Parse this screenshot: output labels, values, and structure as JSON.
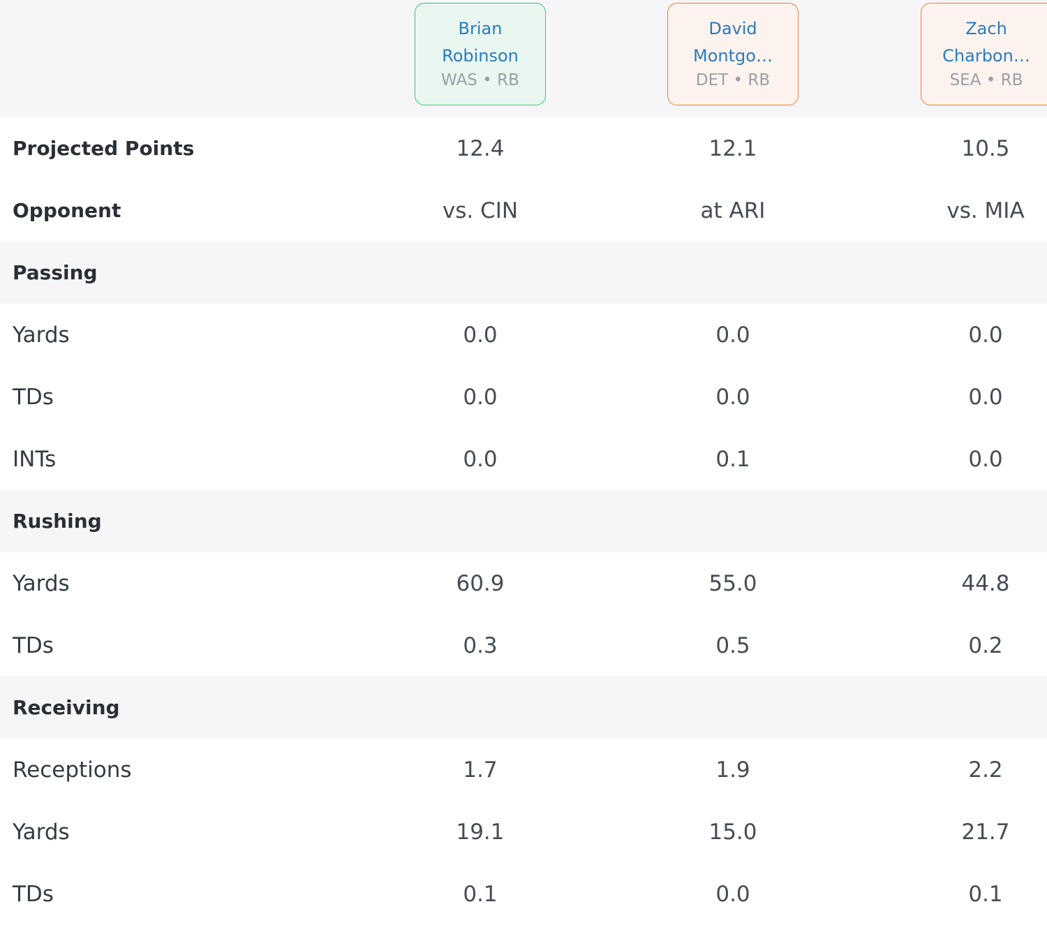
{
  "players": [
    {
      "name": "Brian\nRobinson",
      "meta": "WAS • RB",
      "border_color": "#36c277",
      "bg_color": "#e9f7f0"
    },
    {
      "name": "David\nMontgo…",
      "meta": "DET • RB",
      "border_color": "#ef7a3a",
      "bg_color": "#fdf3ee"
    },
    {
      "name": "Zach\nCharbon…",
      "meta": "SEA • RB",
      "border_color": "#ef7a3a",
      "bg_color": "#fdf3ee"
    }
  ],
  "rows": {
    "projected_points": {
      "label": "Projected Points",
      "values": [
        "12.4",
        "12.1",
        "10.5"
      ]
    },
    "opponent": {
      "label": "Opponent",
      "values": [
        "vs. CIN",
        "at ARI",
        "vs. MIA"
      ]
    },
    "passing_header": {
      "label": "Passing"
    },
    "passing_yards": {
      "label": "Yards",
      "values": [
        "0.0",
        "0.0",
        "0.0"
      ]
    },
    "passing_tds": {
      "label": "TDs",
      "values": [
        "0.0",
        "0.0",
        "0.0"
      ]
    },
    "passing_ints": {
      "label": "INTs",
      "values": [
        "0.0",
        "0.1",
        "0.0"
      ]
    },
    "rushing_header": {
      "label": "Rushing"
    },
    "rushing_yards": {
      "label": "Yards",
      "values": [
        "60.9",
        "55.0",
        "44.8"
      ]
    },
    "rushing_tds": {
      "label": "TDs",
      "values": [
        "0.3",
        "0.5",
        "0.2"
      ]
    },
    "receiving_header": {
      "label": "Receiving"
    },
    "receptions": {
      "label": "Receptions",
      "values": [
        "1.7",
        "1.9",
        "2.2"
      ]
    },
    "receiving_yards": {
      "label": "Yards",
      "values": [
        "19.1",
        "15.0",
        "21.7"
      ]
    },
    "receiving_tds": {
      "label": "TDs",
      "values": [
        "0.1",
        "0.0",
        "0.1"
      ]
    }
  }
}
